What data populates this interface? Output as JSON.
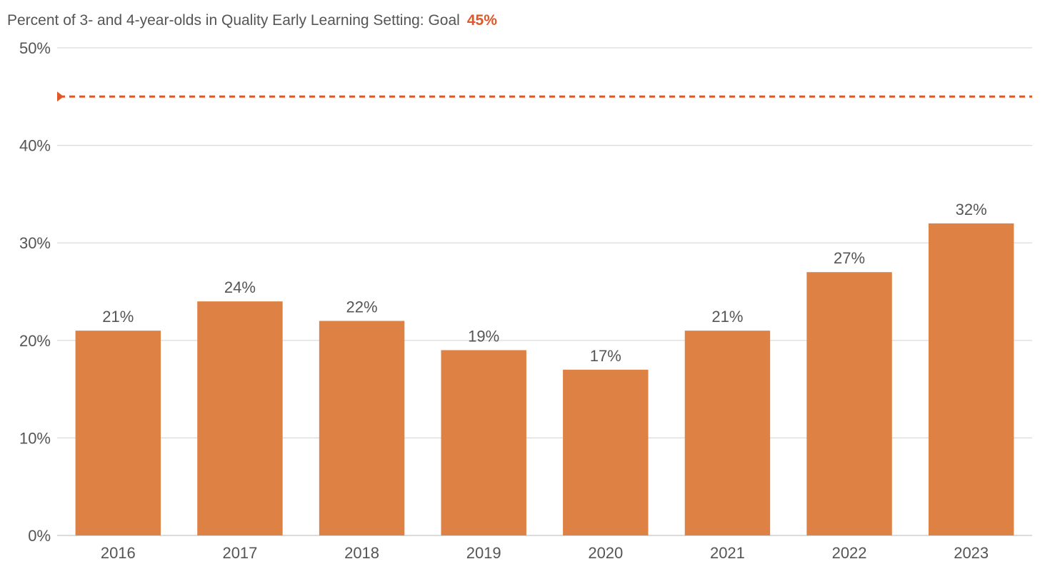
{
  "chart_data": {
    "type": "bar",
    "title": "Percent of 3- and 4-year-olds in Quality Early Learning Setting: Goal",
    "goal_label": "45%",
    "goal_value": 45,
    "categories": [
      "2016",
      "2017",
      "2018",
      "2019",
      "2020",
      "2021",
      "2022",
      "2023"
    ],
    "values": [
      21,
      24,
      22,
      19,
      17,
      21,
      27,
      32
    ],
    "data_labels": [
      "21%",
      "24%",
      "22%",
      "19%",
      "17%",
      "21%",
      "27%",
      "32%"
    ],
    "ylim": [
      0,
      50
    ],
    "yticks": [
      0,
      10,
      20,
      30,
      40,
      50
    ],
    "ytick_labels": [
      "0%",
      "10%",
      "20%",
      "30%",
      "40%",
      "50%"
    ],
    "xlabel": "",
    "ylabel": "",
    "grid": true,
    "legend": "none",
    "colors": {
      "bar": "#DE8145",
      "goal_line": "#E0582A",
      "grid": "#D9D9D9",
      "axis": "#C8C8C8",
      "text": "#555555"
    }
  }
}
